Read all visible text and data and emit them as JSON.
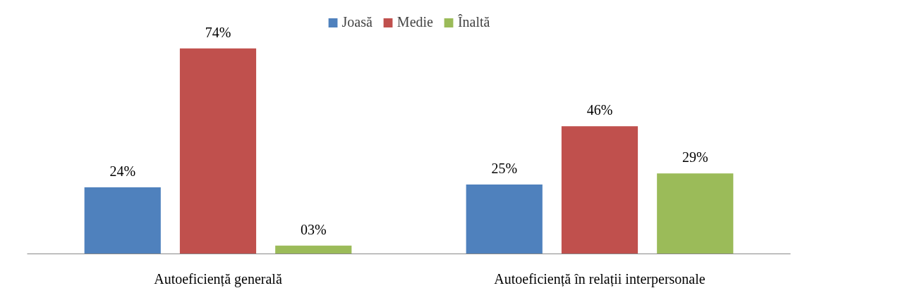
{
  "chart_data": {
    "type": "bar",
    "categories": [
      "Autoeficiență generală",
      "Autoeficiență în relații interpersonale"
    ],
    "series": [
      {
        "name": "Joasă",
        "color": "#4f81bd",
        "values": [
          24,
          25
        ],
        "value_labels": [
          "24%",
          "25%"
        ]
      },
      {
        "name": "Medie",
        "color": "#c0504d",
        "values": [
          74,
          46
        ],
        "value_labels": [
          "74%",
          "46%"
        ]
      },
      {
        "name": "Înaltă",
        "color": "#9bbb59",
        "values": [
          3,
          29
        ],
        "value_labels": [
          "03%",
          "29%"
        ]
      }
    ],
    "legend": "top",
    "grid": false
  }
}
